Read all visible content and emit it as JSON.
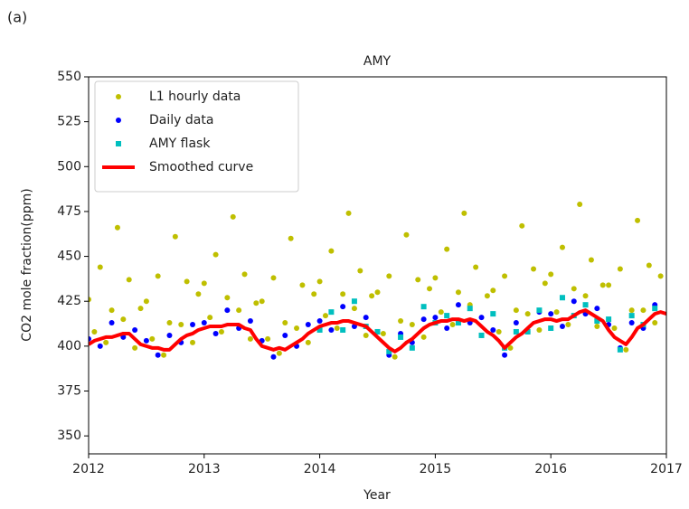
{
  "panel_label": "(a)",
  "chart_data": {
    "type": "scatter",
    "title": "AMY",
    "x_label": "Year",
    "y_label": "CO2 mole fraction(ppm)",
    "xlim": [
      2012,
      2017
    ],
    "xticks": [
      2012,
      2013,
      2014,
      2015,
      2016,
      2017
    ],
    "ylim": [
      340,
      550
    ],
    "yticks": [
      350,
      375,
      400,
      425,
      450,
      475,
      500,
      525,
      550
    ],
    "legend": "upper left",
    "grid": false,
    "series": [
      {
        "name": "L1 hourly data",
        "color": "#bfbf00",
        "marker": "circle",
        "x": [
          2012.0,
          2012.05,
          2012.1,
          2012.15,
          2012.2,
          2012.25,
          2012.3,
          2012.35,
          2012.4,
          2012.45,
          2012.5,
          2012.55,
          2012.6,
          2012.65,
          2012.7,
          2012.75,
          2012.8,
          2012.85,
          2012.9,
          2012.95,
          2013.0,
          2013.05,
          2013.1,
          2013.15,
          2013.2,
          2013.25,
          2013.3,
          2013.35,
          2013.4,
          2013.45,
          2013.5,
          2013.55,
          2013.6,
          2013.65,
          2013.7,
          2013.75,
          2013.8,
          2013.85,
          2013.9,
          2013.95,
          2014.0,
          2014.05,
          2014.1,
          2014.15,
          2014.2,
          2014.25,
          2014.3,
          2014.35,
          2014.4,
          2014.45,
          2014.5,
          2014.55,
          2014.6,
          2014.65,
          2014.7,
          2014.75,
          2014.8,
          2014.85,
          2014.9,
          2014.95,
          2015.0,
          2015.05,
          2015.1,
          2015.15,
          2015.2,
          2015.25,
          2015.3,
          2015.35,
          2015.4,
          2015.45,
          2015.5,
          2015.55,
          2015.6,
          2015.65,
          2015.7,
          2015.75,
          2015.8,
          2015.85,
          2015.9,
          2015.95,
          2016.0,
          2016.05,
          2016.1,
          2016.15,
          2016.2,
          2016.25,
          2016.3,
          2016.35,
          2016.4,
          2016.45,
          2016.5,
          2016.55,
          2016.6,
          2016.65,
          2016.7,
          2016.75,
          2016.8,
          2016.85,
          2016.9,
          2016.95
        ],
        "values": [
          426,
          408,
          444,
          402,
          420,
          466,
          415,
          437,
          399,
          421,
          425,
          404,
          439,
          395,
          413,
          461,
          412,
          436,
          402,
          429,
          435,
          416,
          451,
          408,
          427,
          472,
          420,
          440,
          404,
          424,
          425,
          404,
          438,
          396,
          413,
          460,
          410,
          434,
          402,
          429,
          436,
          417,
          453,
          410,
          429,
          474,
          421,
          442,
          406,
          428,
          430,
          407,
          439,
          394,
          414,
          462,
          412,
          437,
          405,
          432,
          438,
          419,
          454,
          412,
          430,
          474,
          423,
          444,
          406,
          428,
          431,
          408,
          439,
          399,
          420,
          467,
          418,
          443,
          409,
          435,
          440,
          419,
          455,
          412,
          432,
          479,
          428,
          448,
          411,
          434,
          434,
          410,
          443,
          398,
          420,
          470,
          420,
          445,
          413,
          439
        ]
      },
      {
        "name": "Daily data",
        "color": "#0000ff",
        "marker": "circle",
        "x": [
          2012.0,
          2012.1,
          2012.2,
          2012.3,
          2012.4,
          2012.5,
          2012.6,
          2012.7,
          2012.8,
          2012.9,
          2013.0,
          2013.1,
          2013.2,
          2013.3,
          2013.4,
          2013.5,
          2013.6,
          2013.7,
          2013.8,
          2013.9,
          2014.0,
          2014.1,
          2014.2,
          2014.3,
          2014.4,
          2014.5,
          2014.6,
          2014.7,
          2014.8,
          2014.9,
          2015.0,
          2015.1,
          2015.2,
          2015.3,
          2015.4,
          2015.5,
          2015.6,
          2015.7,
          2015.8,
          2015.9,
          2016.0,
          2016.1,
          2016.2,
          2016.3,
          2016.4,
          2016.5,
          2016.6,
          2016.7,
          2016.8,
          2016.9
        ],
        "values": [
          404,
          400,
          413,
          405,
          409,
          403,
          395,
          406,
          402,
          412,
          413,
          407,
          420,
          410,
          414,
          403,
          394,
          406,
          400,
          412,
          414,
          409,
          422,
          411,
          416,
          408,
          395,
          407,
          402,
          415,
          416,
          410,
          423,
          413,
          416,
          409,
          395,
          413,
          408,
          419,
          418,
          411,
          425,
          418,
          421,
          412,
          399,
          413,
          410,
          423
        ]
      },
      {
        "name": "AMY flask",
        "color": "#00bfbf",
        "marker": "square",
        "x": [
          2014.0,
          2014.1,
          2014.2,
          2014.3,
          2014.4,
          2014.5,
          2014.6,
          2014.7,
          2014.8,
          2014.9,
          2015.0,
          2015.1,
          2015.2,
          2015.3,
          2015.4,
          2015.5,
          2015.6,
          2015.7,
          2015.8,
          2015.9,
          2016.0,
          2016.1,
          2016.2,
          2016.3,
          2016.4,
          2016.5,
          2016.6,
          2016.7,
          2016.8,
          2016.9
        ],
        "values": [
          409,
          419,
          409,
          425,
          411,
          408,
          397,
          405,
          399,
          422,
          413,
          417,
          413,
          421,
          406,
          418,
          399,
          408,
          408,
          420,
          410,
          427,
          417,
          423,
          414,
          415,
          398,
          417,
          412,
          421
        ]
      },
      {
        "name": "Smoothed curve",
        "color": "#ff0000",
        "marker": "line",
        "x": [
          2012.0,
          2012.05,
          2012.1,
          2012.15,
          2012.2,
          2012.25,
          2012.3,
          2012.35,
          2012.4,
          2012.45,
          2012.5,
          2012.55,
          2012.6,
          2012.65,
          2012.7,
          2012.75,
          2012.8,
          2012.85,
          2012.9,
          2012.95,
          2013.0,
          2013.05,
          2013.1,
          2013.15,
          2013.2,
          2013.25,
          2013.3,
          2013.35,
          2013.4,
          2013.45,
          2013.5,
          2013.55,
          2013.6,
          2013.65,
          2013.7,
          2013.75,
          2013.8,
          2013.85,
          2013.9,
          2013.95,
          2014.0,
          2014.05,
          2014.1,
          2014.15,
          2014.2,
          2014.25,
          2014.3,
          2014.35,
          2014.4,
          2014.45,
          2014.5,
          2014.55,
          2014.6,
          2014.65,
          2014.7,
          2014.75,
          2014.8,
          2014.85,
          2014.9,
          2014.95,
          2015.0,
          2015.05,
          2015.1,
          2015.15,
          2015.2,
          2015.25,
          2015.3,
          2015.35,
          2015.4,
          2015.45,
          2015.5,
          2015.55,
          2015.6,
          2015.65,
          2015.7,
          2015.75,
          2015.8,
          2015.85,
          2015.9,
          2015.95,
          2016.0,
          2016.05,
          2016.1,
          2016.15,
          2016.2,
          2016.25,
          2016.3,
          2016.35,
          2016.4,
          2016.45,
          2016.5,
          2016.55,
          2016.6,
          2016.65,
          2016.7,
          2016.75,
          2016.8,
          2016.85,
          2016.9,
          2016.95,
          2017.0
        ],
        "values": [
          401,
          403,
          404,
          405,
          405,
          406,
          407,
          407,
          404,
          401,
          400,
          399,
          399,
          398,
          398,
          401,
          404,
          406,
          407,
          409,
          410,
          411,
          411,
          411,
          412,
          412,
          412,
          410,
          409,
          404,
          400,
          399,
          398,
          399,
          398,
          400,
          402,
          404,
          407,
          409,
          411,
          412,
          413,
          413,
          414,
          414,
          413,
          412,
          411,
          408,
          405,
          402,
          399,
          397,
          399,
          402,
          404,
          407,
          410,
          412,
          413,
          414,
          414,
          415,
          415,
          414,
          415,
          414,
          411,
          408,
          406,
          403,
          399,
          402,
          405,
          407,
          410,
          413,
          414,
          415,
          415,
          414,
          415,
          415,
          417,
          419,
          420,
          418,
          416,
          414,
          409,
          405,
          403,
          401,
          405,
          410,
          412,
          415,
          418,
          419,
          418
        ]
      }
    ]
  }
}
